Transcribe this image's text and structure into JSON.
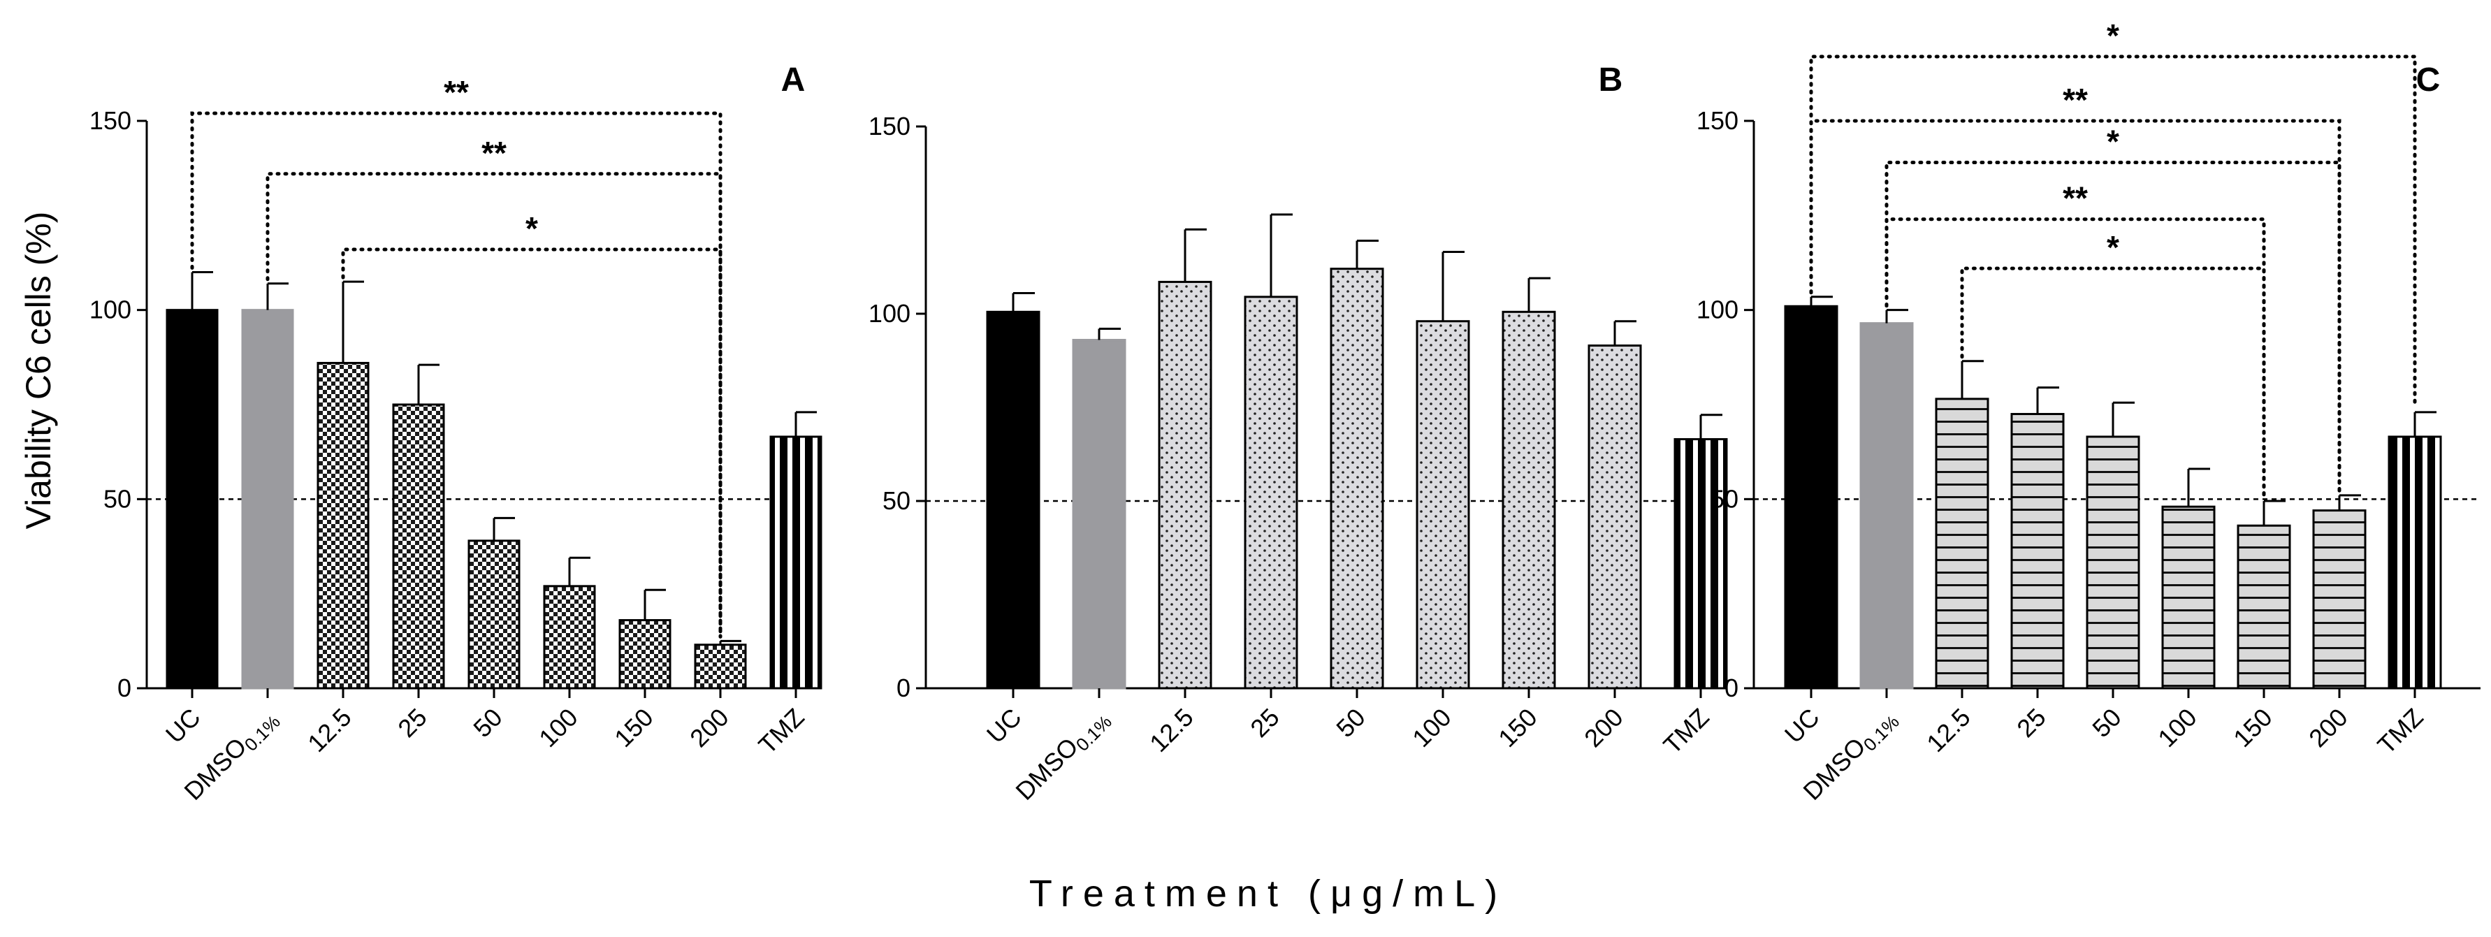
{
  "chart_data": {
    "type": "bar",
    "ylabel": "Viability  C6 cells  (%)",
    "xlabel": "Treatment (μg/mL)",
    "ylim": [
      0,
      150
    ],
    "yticks": [
      0,
      50,
      100,
      150
    ],
    "reference_line": 50,
    "categories": [
      {
        "main": "UC",
        "sub": ""
      },
      {
        "main": "DMSO",
        "sub": "0.1%"
      },
      {
        "main": "12.5",
        "sub": ""
      },
      {
        "main": "25",
        "sub": ""
      },
      {
        "main": "50",
        "sub": ""
      },
      {
        "main": "100",
        "sub": ""
      },
      {
        "main": "150",
        "sub": ""
      },
      {
        "main": "200",
        "sub": ""
      },
      {
        "main": "TMZ",
        "sub": ""
      }
    ],
    "panels": [
      {
        "label": "A",
        "pattern": "checker",
        "values": [
          100,
          100,
          86,
          75,
          39,
          27,
          18,
          11.5,
          66.5
        ],
        "errors": [
          10,
          7,
          21.5,
          10.5,
          6,
          7.5,
          8,
          1,
          6.5
        ],
        "significance": [
          {
            "from": 0,
            "to": 7,
            "label": "**",
            "y": 152
          },
          {
            "from": 1,
            "to": 7,
            "label": "**",
            "y": 136
          },
          {
            "from": 2,
            "to": 7,
            "label": "*",
            "y": 116
          }
        ]
      },
      {
        "label": "B",
        "pattern": "dots",
        "values": [
          100.5,
          93,
          108.5,
          104.5,
          112,
          98,
          100.5,
          91.5,
          66.5
        ],
        "errors": [
          5,
          3,
          14,
          22,
          7.5,
          18.5,
          9,
          6.5,
          6.5
        ],
        "significance": []
      },
      {
        "label": "C",
        "pattern": "hstripes",
        "values": [
          101,
          96.5,
          76.5,
          72.5,
          66.5,
          48,
          43,
          47,
          66.5
        ],
        "errors": [
          2.5,
          3.5,
          10,
          7,
          9,
          10,
          6.5,
          4,
          6.5
        ],
        "significance": [
          {
            "from": 0,
            "to": 8,
            "label": "*",
            "y": 167
          },
          {
            "from": 0,
            "to": 7,
            "label": "**",
            "y": 150
          },
          {
            "from": 1,
            "to": 7,
            "label": "*",
            "y": 139
          },
          {
            "from": 1,
            "to": 6,
            "label": "**",
            "y": 124
          },
          {
            "from": 2,
            "to": 6,
            "label": "*",
            "y": 111
          }
        ]
      }
    ]
  },
  "colors": {
    "uc": "#000000",
    "dmso": "#9b9b9f",
    "tmz": "#000000",
    "pattern_bg": "#d9d9dc",
    "axis": "#000000"
  }
}
